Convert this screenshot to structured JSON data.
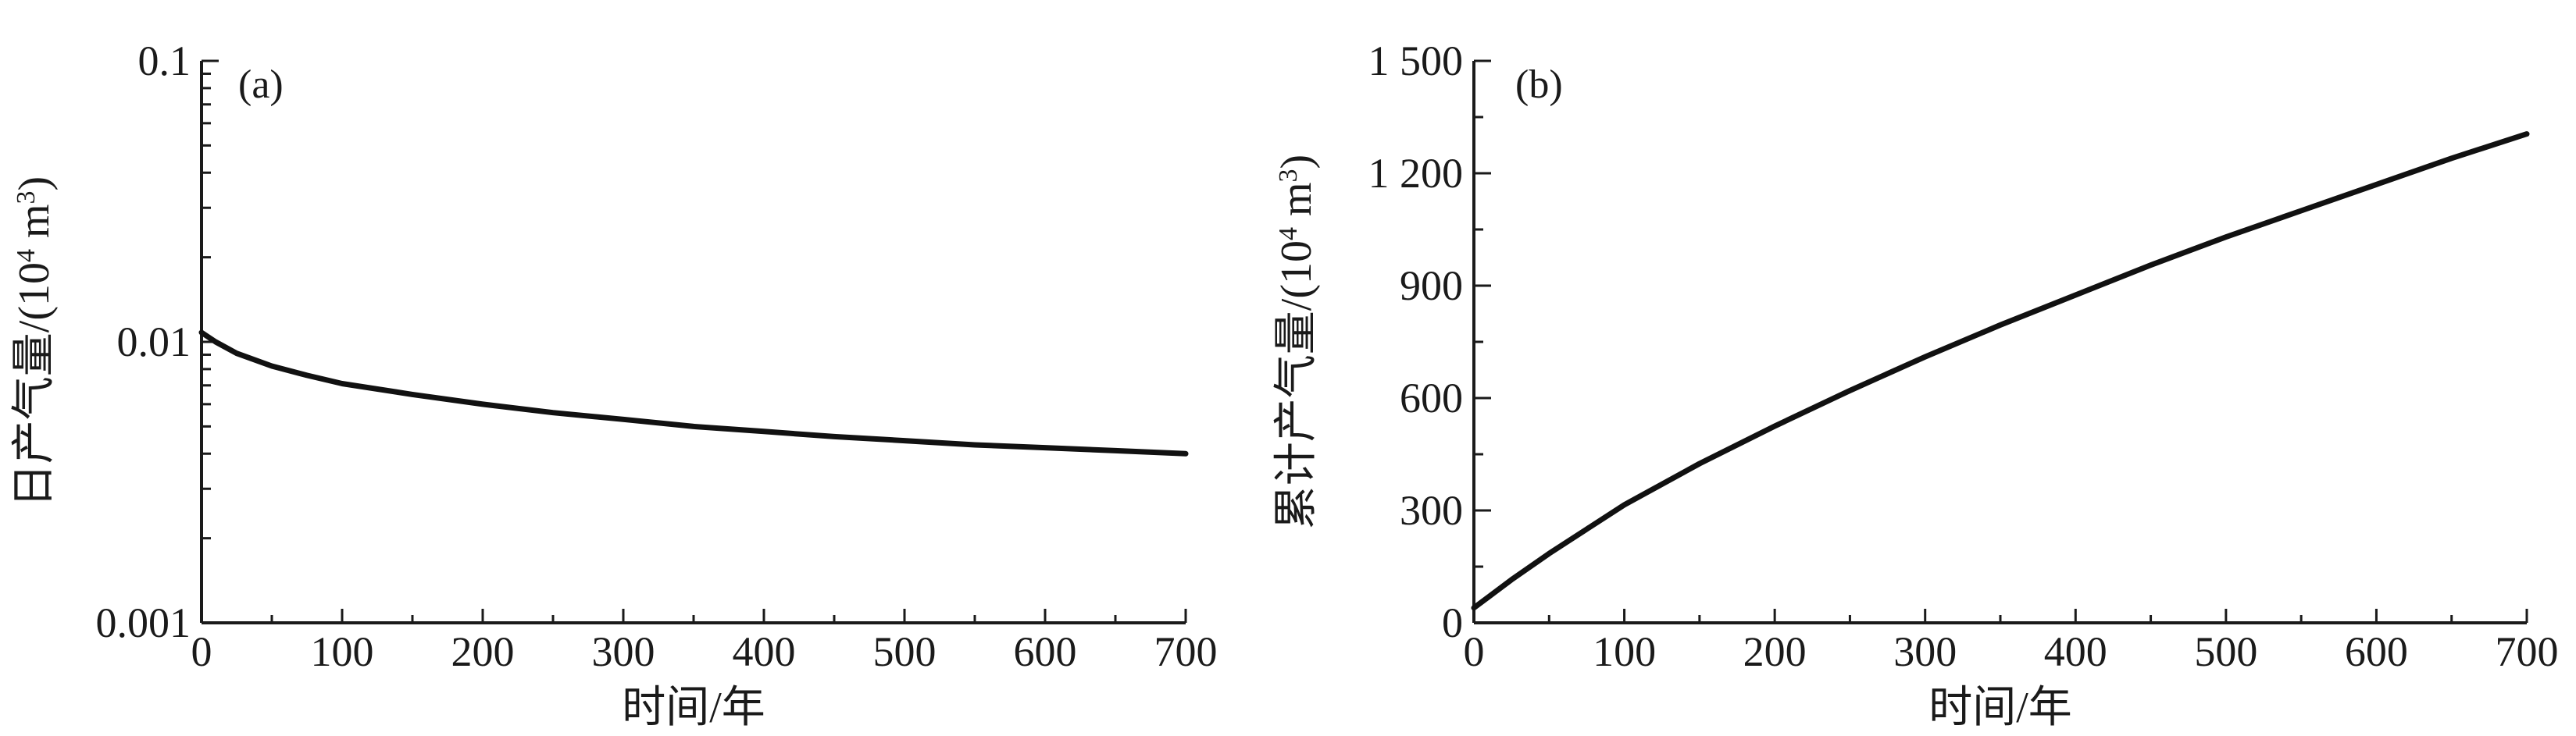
{
  "chart_data": [
    {
      "type": "line",
      "panel_label": "(a)",
      "xlabel": "时间/年",
      "ylabel_main": "日产气量/(10",
      "ylabel_exp1": "4",
      "ylabel_mid": " m",
      "ylabel_exp2": "3",
      "ylabel_end": ")",
      "xlim": [
        0,
        700
      ],
      "ylim": [
        0.001,
        0.1
      ],
      "yscale": "log",
      "x_ticks": [
        "0",
        "100",
        "200",
        "300",
        "400",
        "500",
        "600",
        "700"
      ],
      "y_ticks": [
        "0.001",
        "0.01",
        "0.1"
      ],
      "grid": false,
      "series": [
        {
          "x": [
            0,
            10,
            25,
            50,
            75,
            100,
            150,
            200,
            250,
            300,
            350,
            400,
            450,
            500,
            550,
            600,
            650,
            700
          ],
          "y": [
            0.0108,
            0.01,
            0.0091,
            0.0082,
            0.0076,
            0.0071,
            0.0065,
            0.006,
            0.0056,
            0.0053,
            0.005,
            0.0048,
            0.0046,
            0.00445,
            0.0043,
            0.0042,
            0.0041,
            0.004
          ]
        }
      ]
    },
    {
      "type": "line",
      "panel_label": "(b)",
      "xlabel": "时间/年",
      "ylabel_main": "累计产气量/(10",
      "ylabel_exp1": "4",
      "ylabel_mid": " m",
      "ylabel_exp2": "3",
      "ylabel_end": ")",
      "xlim": [
        0,
        700
      ],
      "ylim": [
        0,
        1500
      ],
      "yscale": "linear",
      "x_ticks": [
        "0",
        "100",
        "200",
        "300",
        "400",
        "500",
        "600",
        "700"
      ],
      "y_ticks": [
        "0",
        "300",
        "600",
        "900",
        "1 200",
        "1 500"
      ],
      "grid": false,
      "series": [
        {
          "x": [
            0,
            10,
            25,
            50,
            75,
            100,
            150,
            200,
            250,
            300,
            350,
            400,
            450,
            500,
            550,
            600,
            650,
            700
          ],
          "y": [
            40,
            70,
            115,
            185,
            250,
            315,
            425,
            525,
            620,
            710,
            795,
            875,
            955,
            1030,
            1100,
            1170,
            1240,
            1305
          ]
        }
      ]
    }
  ]
}
